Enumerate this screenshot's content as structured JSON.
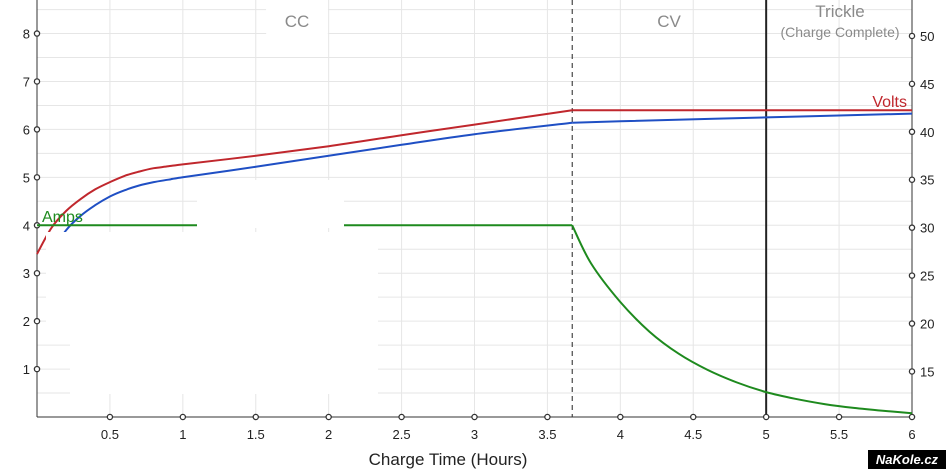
{
  "chart_data": {
    "type": "line",
    "xlabel": "Charge Time (Hours)",
    "xlim": [
      0,
      6
    ],
    "x_ticks": [
      "0.5",
      "1",
      "1.5",
      "2",
      "2.5",
      "3",
      "3.5",
      "4",
      "4.5",
      "5",
      "5.5",
      "6"
    ],
    "y_left": {
      "lim": [
        0,
        8.7
      ],
      "ticks": [
        "1",
        "2",
        "3",
        "4",
        "5",
        "6",
        "7",
        "8"
      ]
    },
    "y_right": {
      "lim": [
        10.25,
        53.75
      ],
      "ticks": [
        "15",
        "20",
        "25",
        "30",
        "35",
        "40",
        "45",
        "50"
      ]
    },
    "grid": true,
    "phases": [
      {
        "name": "CC",
        "sub": "",
        "from": 0,
        "to": 3.67
      },
      {
        "name": "CV",
        "sub": "",
        "from": 3.67,
        "to": 5.0
      },
      {
        "name": "Trickle",
        "sub": "(Charge Complete)",
        "from": 5.0,
        "to": 6
      }
    ],
    "phase_dividers": [
      {
        "x": 3.67,
        "style": "dashed"
      },
      {
        "x": 5.0,
        "style": "solid"
      }
    ],
    "series": [
      {
        "name": "Volts",
        "axis": "left",
        "color": "#c0272d",
        "x": [
          0,
          0.1,
          0.2,
          0.3,
          0.4,
          0.5,
          0.6,
          0.7,
          0.8,
          0.9,
          1.0,
          1.5,
          2.0,
          2.5,
          3.0,
          3.67,
          4.0,
          5.0,
          6.0
        ],
        "y": [
          3.4,
          3.95,
          4.3,
          4.55,
          4.75,
          4.9,
          5.03,
          5.12,
          5.19,
          5.23,
          5.27,
          5.45,
          5.65,
          5.88,
          6.1,
          6.4,
          6.4,
          6.4,
          6.4
        ]
      },
      {
        "name": "",
        "axis": "left",
        "color": "#1f4fc4",
        "x": [
          0.15,
          0.2,
          0.3,
          0.4,
          0.5,
          0.6,
          0.7,
          0.8,
          0.9,
          1.0,
          1.5,
          2.0,
          2.5,
          3.0,
          3.67,
          4.0,
          5.0,
          6.0
        ],
        "y": [
          3.65,
          3.9,
          4.2,
          4.42,
          4.6,
          4.73,
          4.83,
          4.9,
          4.95,
          5.0,
          5.22,
          5.45,
          5.68,
          5.9,
          6.14,
          6.17,
          6.25,
          6.33
        ]
      },
      {
        "name": "Amps",
        "axis": "left",
        "color": "#1e8a1e",
        "x": [
          0,
          1.0,
          2.0,
          3.0,
          3.67,
          3.8,
          4.0,
          4.2,
          4.4,
          4.6,
          4.8,
          5.0,
          5.2,
          5.4,
          5.6,
          5.8,
          6.0
        ],
        "y": [
          4.0,
          4.0,
          4.0,
          4.0,
          4.0,
          3.2,
          2.4,
          1.78,
          1.32,
          0.98,
          0.72,
          0.52,
          0.38,
          0.27,
          0.19,
          0.13,
          0.08
        ]
      }
    ]
  },
  "watermark": {
    "text": "NaKole.cz"
  }
}
